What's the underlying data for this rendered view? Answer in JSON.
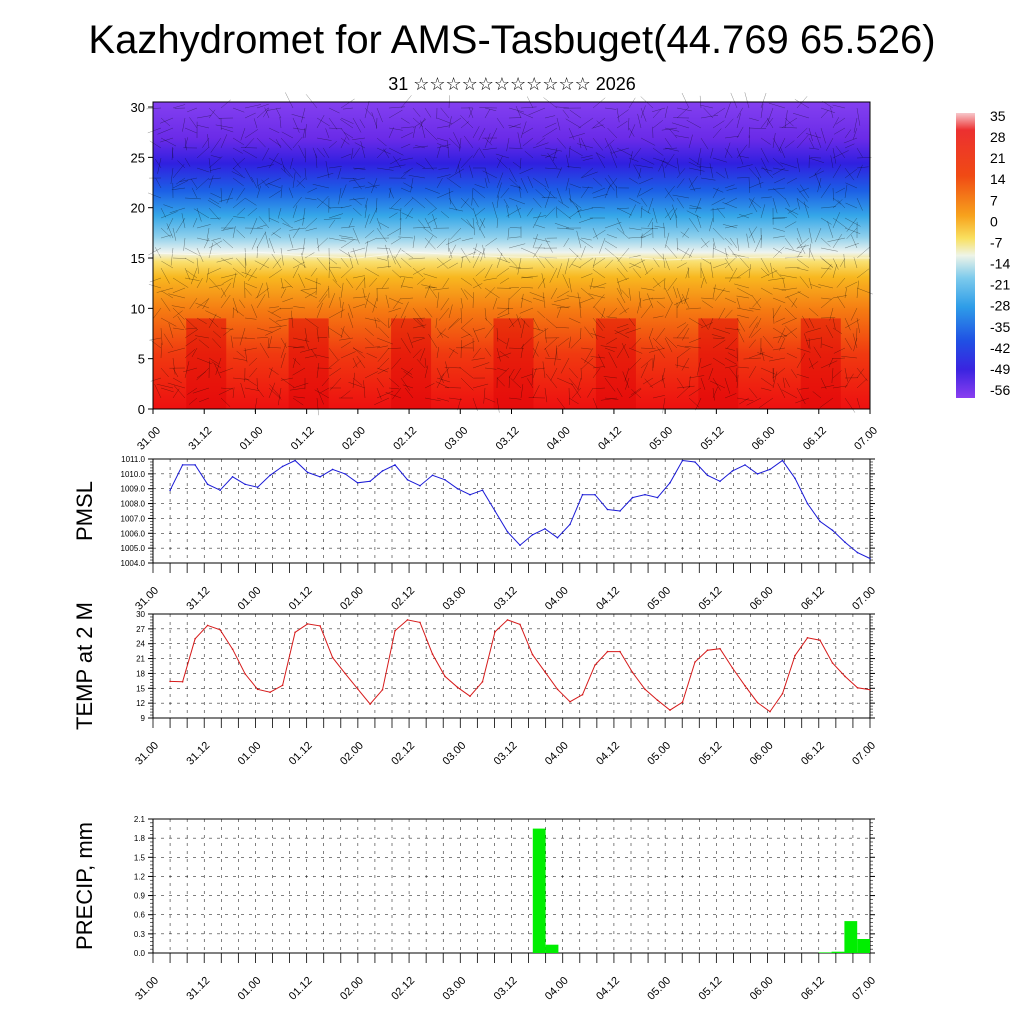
{
  "header": {
    "title": "Kazhydromet for AMS-Tasbuget(44.769 65.526)",
    "subtitle": "31 ☆☆☆☆☆☆☆☆☆☆☆ 2026"
  },
  "colors": {
    "pmsl": "#1a1ad6",
    "temp": "#d61a1a",
    "precip": "#00ee00"
  },
  "chart_data": [
    {
      "type": "heatmap",
      "name": "vertical-section",
      "x_ticks": [
        "31.00",
        "31.12",
        "01.00",
        "01.12",
        "02.00",
        "02.12",
        "03.00",
        "03.12",
        "04.00",
        "04.12",
        "05.00",
        "05.12",
        "06.00",
        "06.12",
        "07.00"
      ],
      "y_ticks": [
        "0",
        "5",
        "10",
        "15",
        "20",
        "25",
        "30"
      ],
      "ylim": [
        0,
        30.5
      ],
      "colorbar": {
        "labels": [
          "35",
          "28",
          "21",
          "14",
          "7",
          "0",
          "-7",
          "-14",
          "-21",
          "-28",
          "-35",
          "-42",
          "-49",
          "-56"
        ],
        "range": [
          -60,
          38
        ]
      },
      "approx_freezing_level": [
        15.5,
        15.3,
        15.6,
        15.2,
        15.0,
        15.6,
        15.3,
        15.1,
        15.0,
        15.2,
        14.8,
        15.0,
        15.1,
        15.0,
        15.0
      ]
    },
    {
      "type": "line",
      "name": "pmsl",
      "ylabel": "PMSL",
      "x_ticks": [
        "31.00",
        "31.12",
        "01.00",
        "01.12",
        "02.00",
        "02.12",
        "03.00",
        "03.12",
        "04.00",
        "04.12",
        "05.00",
        "05.12",
        "06.00",
        "06.12",
        "07.00"
      ],
      "y_ticks": [
        "1004.0",
        "1005.0",
        "1006.0",
        "1007.0",
        "1008.0",
        "1009.0",
        "1010.0",
        "1011.0"
      ],
      "ylim": [
        1004,
        1011
      ],
      "values": [
        1008.9,
        1010.6,
        1010.6,
        1009.3,
        1008.9,
        1009.8,
        1009.3,
        1009.1,
        1009.9,
        1010.5,
        1010.9,
        1010.1,
        1009.8,
        1010.3,
        1010.0,
        1009.4,
        1009.5,
        1010.2,
        1010.6,
        1009.6,
        1009.2,
        1009.9,
        1009.6,
        1009.0,
        1008.6,
        1008.9,
        1007.5,
        1006.1,
        1005.2,
        1005.9,
        1006.3,
        1005.7,
        1006.6,
        1008.6,
        1008.6,
        1007.6,
        1007.5,
        1008.4,
        1008.6,
        1008.4,
        1009.4,
        1010.9,
        1010.8,
        1009.9,
        1009.5,
        1010.2,
        1010.6,
        1010.0,
        1010.3,
        1010.9,
        1009.7,
        1008.0,
        1006.8,
        1006.2,
        1005.4,
        1004.7,
        1004.3
      ]
    },
    {
      "type": "line",
      "name": "temp",
      "ylabel": "TEMP at 2 M",
      "x_ticks": [
        "31.00",
        "31.12",
        "01.00",
        "01.12",
        "02.00",
        "02.12",
        "03.00",
        "03.12",
        "04.00",
        "04.12",
        "05.00",
        "05.12",
        "06.00",
        "06.12",
        "07.00"
      ],
      "y_ticks": [
        "9",
        "12",
        "15",
        "18",
        "21",
        "24",
        "27",
        "30"
      ],
      "ylim": [
        9,
        30
      ],
      "values": [
        16.4,
        16.3,
        25.0,
        27.7,
        26.8,
        22.9,
        17.9,
        14.8,
        14.2,
        15.6,
        26.3,
        28.0,
        27.6,
        21.2,
        18.0,
        14.9,
        11.8,
        14.7,
        26.6,
        28.8,
        28.3,
        21.9,
        17.4,
        15.2,
        13.4,
        16.3,
        26.4,
        28.8,
        27.9,
        21.8,
        18.3,
        14.8,
        12.3,
        13.7,
        19.7,
        22.4,
        22.4,
        18.2,
        14.8,
        12.6,
        10.6,
        12.2,
        20.3,
        22.7,
        23.0,
        19.1,
        15.5,
        12.1,
        10.3,
        13.9,
        21.6,
        25.2,
        24.7,
        20.1,
        17.4,
        15.1,
        14.7
      ]
    },
    {
      "type": "bar",
      "name": "precip",
      "ylabel": "PRECIP, mm",
      "x_ticks": [
        "31.00",
        "31.12",
        "01.00",
        "01.12",
        "02.00",
        "02.12",
        "03.00",
        "03.12",
        "04.00",
        "04.12",
        "05.00",
        "05.12",
        "06.00",
        "06.12",
        "07.00"
      ],
      "y_ticks": [
        "0.0",
        "0.3",
        "0.6",
        "0.9",
        "1.2",
        "1.5",
        "1.8",
        "2.1"
      ],
      "ylim": [
        0,
        2.1
      ],
      "bars": [
        {
          "start": 3.708,
          "end": 3.833,
          "value": 1.95
        },
        {
          "start": 3.833,
          "end": 3.958,
          "value": 0.13
        },
        {
          "start": 6.5,
          "end": 6.625,
          "value": 0.01
        },
        {
          "start": 6.625,
          "end": 6.75,
          "value": 0.02
        },
        {
          "start": 6.75,
          "end": 6.875,
          "value": 0.5
        },
        {
          "start": 6.875,
          "end": 7.0,
          "value": 0.22
        }
      ]
    }
  ]
}
